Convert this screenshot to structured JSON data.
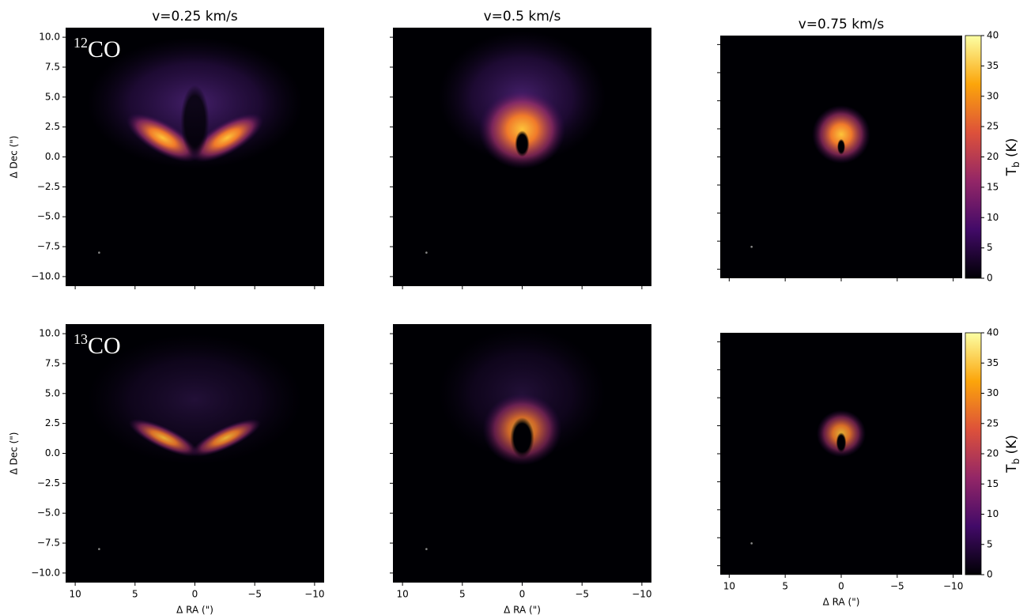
{
  "chart_data": [
    {
      "type": "image",
      "title": "v=0.25 km/s",
      "annotation": {
        "sup": "12",
        "text": "CO"
      },
      "ylabel": "Δ Dec (\")",
      "xlim": [
        10.8,
        -10.8
      ],
      "ylim": [
        -10.8,
        10.8
      ],
      "xticks": [
        10,
        5,
        0,
        -5,
        -10
      ],
      "yticks": [
        {
          "value": 10,
          "label": "10.0"
        },
        {
          "value": 7.5,
          "label": "7.5"
        },
        {
          "value": 5,
          "label": "5.0"
        },
        {
          "value": 2.5,
          "label": "2.5"
        },
        {
          "value": 0,
          "label": "0.0"
        },
        {
          "value": -2.5,
          "label": "−2.5"
        },
        {
          "value": -5,
          "label": "−5.0"
        },
        {
          "value": -7.5,
          "label": "−7.5"
        },
        {
          "value": -10,
          "label": "−10.0"
        }
      ]
    },
    {
      "type": "image",
      "title": "v=0.5 km/s",
      "xlim": [
        10.8,
        -10.8
      ],
      "ylim": [
        -10.8,
        10.8
      ],
      "xticks": [
        10,
        5,
        0,
        -5,
        -10
      ],
      "yticks": [
        10,
        7.5,
        5,
        2.5,
        0,
        -2.5,
        -5,
        -7.5,
        -10
      ]
    },
    {
      "type": "image",
      "title": "v=0.75 km/s",
      "xlim": [
        10.8,
        -10.8
      ],
      "ylim": [
        -10.8,
        10.8
      ],
      "xticks": [
        10,
        5,
        0,
        -5,
        -10
      ],
      "yticks": [
        10,
        7.5,
        5,
        2.5,
        0,
        -2.5,
        -5,
        -7.5,
        -10
      ],
      "colorbar": {
        "lim": [
          0,
          40
        ],
        "ticks": [
          0,
          5,
          10,
          15,
          20,
          25,
          30,
          35,
          40
        ],
        "label": {
          "text": "T",
          "sub": "b",
          "unit": " (K)"
        }
      }
    },
    {
      "type": "image",
      "annotation": {
        "sup": "13",
        "text": "CO"
      },
      "ylabel": "Δ Dec (\")",
      "xlabel": "Δ RA (\")",
      "xlim": [
        10.8,
        -10.8
      ],
      "ylim": [
        -10.8,
        10.8
      ],
      "xticks": [
        10,
        5,
        0,
        {
          "value": -5,
          "label": "−5"
        },
        {
          "value": -10,
          "label": "−10"
        }
      ],
      "yticks": [
        {
          "value": 10,
          "label": "10.0"
        },
        {
          "value": 7.5,
          "label": "7.5"
        },
        {
          "value": 5,
          "label": "5.0"
        },
        {
          "value": 2.5,
          "label": "2.5"
        },
        {
          "value": 0,
          "label": "0.0"
        },
        {
          "value": -2.5,
          "label": "−2.5"
        },
        {
          "value": -5,
          "label": "−5.0"
        },
        {
          "value": -7.5,
          "label": "−7.5"
        },
        {
          "value": -10,
          "label": "−10.0"
        }
      ]
    },
    {
      "type": "image",
      "xlabel": "Δ RA (\")",
      "xlim": [
        10.8,
        -10.8
      ],
      "ylim": [
        -10.8,
        10.8
      ],
      "xticks": [
        10,
        5,
        0,
        {
          "value": -5,
          "label": "−5"
        },
        {
          "value": -10,
          "label": "−10"
        }
      ],
      "yticks": [
        10,
        7.5,
        5,
        2.5,
        0,
        -2.5,
        -5,
        -7.5,
        -10
      ]
    },
    {
      "type": "image",
      "xlabel": "Δ RA (\")",
      "xlim": [
        10.8,
        -10.8
      ],
      "ylim": [
        -10.8,
        10.8
      ],
      "xticks": [
        10,
        5,
        0,
        {
          "value": -5,
          "label": "−5"
        },
        {
          "value": -10,
          "label": "−10"
        }
      ],
      "yticks": [
        10,
        7.5,
        5,
        2.5,
        0,
        -2.5,
        -5,
        -7.5,
        -10
      ],
      "colorbar": {
        "lim": [
          0,
          40
        ],
        "ticks": [
          0,
          5,
          10,
          15,
          20,
          25,
          30,
          35,
          40
        ],
        "label": {
          "text": "T",
          "sub": "b",
          "unit": " (K)"
        }
      }
    }
  ]
}
